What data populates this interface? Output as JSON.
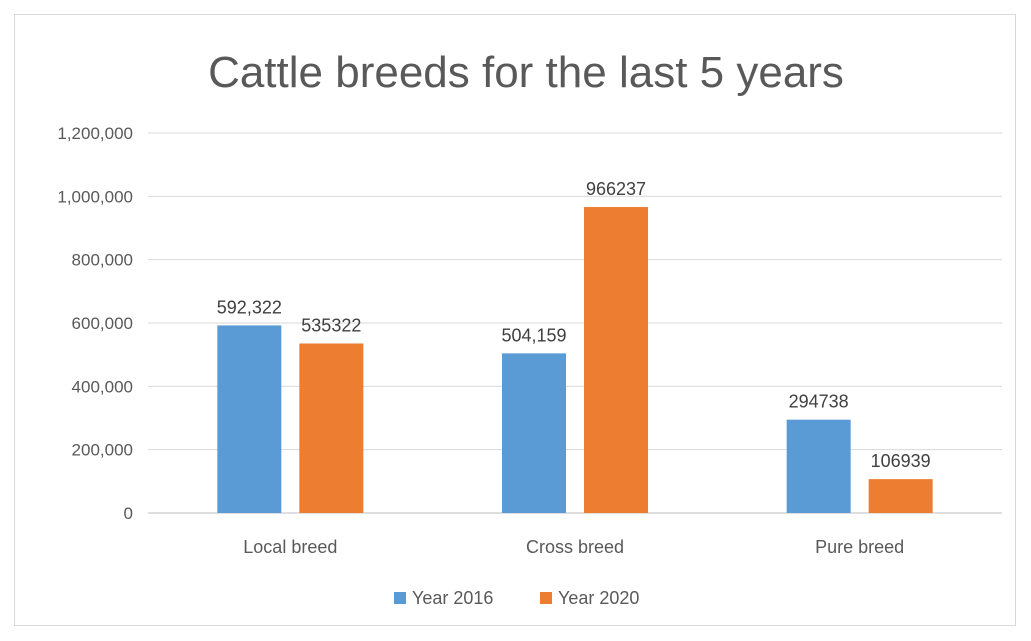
{
  "chart_data": {
    "type": "bar",
    "title": "Cattle breeds for the last 5 years",
    "categories": [
      "Local breed",
      "Cross breed",
      "Pure breed"
    ],
    "series": [
      {
        "name": "Year 2016",
        "color": "#5b9bd5",
        "values": [
          592322,
          504159,
          294738
        ],
        "labels": [
          "592,322",
          "504,159",
          "294738"
        ]
      },
      {
        "name": "Year 2020",
        "color": "#ed7d31",
        "values": [
          535322,
          966237,
          106939
        ],
        "labels": [
          "535322",
          "966237",
          "106939"
        ]
      }
    ],
    "ylim": [
      0,
      1200000
    ],
    "yticks": [
      0,
      200000,
      400000,
      600000,
      800000,
      1000000,
      1200000
    ],
    "ytick_labels": [
      "0",
      "200,000",
      "400,000",
      "600,000",
      "800,000",
      "1,000,000",
      "1,200,000"
    ],
    "grid": true,
    "legend_position": "bottom"
  }
}
